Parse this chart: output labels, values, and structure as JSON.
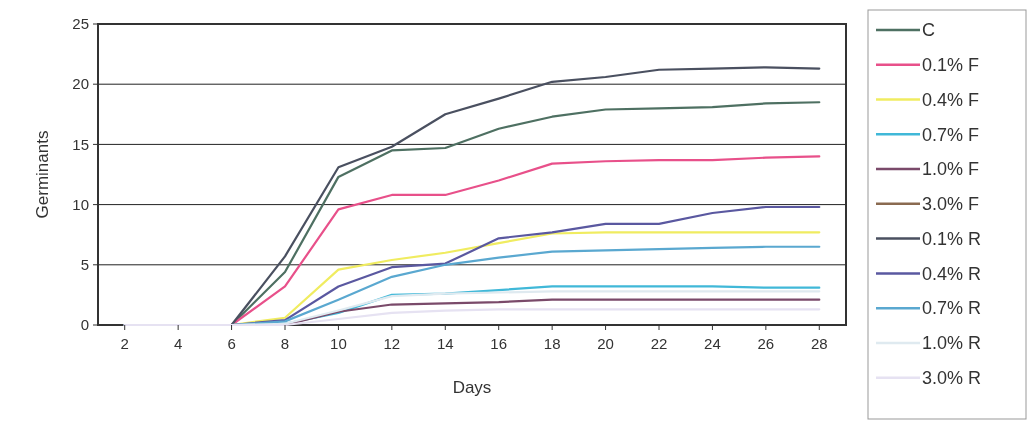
{
  "chart_data": {
    "type": "line",
    "xlabel": "Days",
    "ylabel": "Germinants",
    "x": [
      2,
      4,
      6,
      8,
      10,
      12,
      14,
      16,
      18,
      20,
      22,
      24,
      26,
      28
    ],
    "xlim": [
      1,
      29
    ],
    "xticks": [
      2,
      4,
      6,
      8,
      10,
      12,
      14,
      16,
      18,
      20,
      22,
      24,
      26,
      28
    ],
    "ylim": [
      0,
      25
    ],
    "yticks": [
      0,
      5,
      10,
      15,
      20,
      25
    ],
    "grid": "y",
    "legend": "right",
    "marker": "none",
    "line_style": "solid",
    "series": [
      {
        "name": "C",
        "color": "#4e7062",
        "values": [
          0,
          0,
          0,
          4.4,
          12.3,
          14.5,
          14.7,
          16.3,
          17.3,
          17.9,
          18.0,
          18.1,
          18.4,
          18.5
        ]
      },
      {
        "name": "0.1% F",
        "color": "#e8508a",
        "values": [
          0,
          0,
          0,
          3.2,
          9.6,
          10.8,
          10.8,
          12.0,
          13.4,
          13.6,
          13.7,
          13.7,
          13.9,
          14.0
        ]
      },
      {
        "name": "0.4% F",
        "color": "#f0ec60",
        "values": [
          0,
          0,
          0,
          0.6,
          4.6,
          5.4,
          6.0,
          6.8,
          7.6,
          7.7,
          7.7,
          7.7,
          7.7,
          7.7
        ]
      },
      {
        "name": "0.7% F",
        "color": "#40b8d8",
        "values": [
          0,
          0,
          0,
          0.1,
          1.0,
          2.5,
          2.6,
          2.9,
          3.2,
          3.2,
          3.2,
          3.2,
          3.1,
          3.1
        ]
      },
      {
        "name": "1.0% F",
        "color": "#7a4a6a",
        "values": [
          0,
          0,
          0,
          0,
          1.1,
          1.7,
          1.8,
          1.9,
          2.1,
          2.1,
          2.1,
          2.1,
          2.1,
          2.1
        ]
      },
      {
        "name": "3.0% F",
        "color": "#8a6a50",
        "values": [
          null,
          null,
          null,
          null,
          null,
          null,
          null,
          null,
          null,
          null,
          null,
          null,
          null,
          null
        ]
      },
      {
        "name": "0.1% R",
        "color": "#4a5060",
        "values": [
          0,
          0,
          0,
          5.7,
          13.1,
          14.8,
          17.5,
          18.8,
          20.2,
          20.6,
          21.2,
          21.3,
          21.4,
          21.3
        ]
      },
      {
        "name": "0.4% R",
        "color": "#5a58a0",
        "values": [
          0,
          0,
          0,
          0.4,
          3.2,
          4.8,
          5.1,
          7.2,
          7.7,
          8.4,
          8.4,
          9.3,
          9.8,
          9.8
        ]
      },
      {
        "name": "0.7% R",
        "color": "#5aa8d0",
        "values": [
          0,
          0,
          0,
          0.3,
          2.1,
          4.0,
          5.0,
          5.6,
          6.1,
          6.2,
          6.3,
          6.4,
          6.5,
          6.5
        ]
      },
      {
        "name": "1.0% R",
        "color": "#dfeaf0",
        "values": [
          0,
          0,
          0,
          0.1,
          1.2,
          2.4,
          2.6,
          2.7,
          2.8,
          2.8,
          2.8,
          2.8,
          2.8,
          2.8
        ]
      },
      {
        "name": "3.0% R",
        "color": "#e6e2f2",
        "values": [
          0,
          0,
          0,
          0,
          0.5,
          1.0,
          1.2,
          1.3,
          1.3,
          1.3,
          1.3,
          1.3,
          1.3,
          1.3
        ]
      }
    ]
  }
}
